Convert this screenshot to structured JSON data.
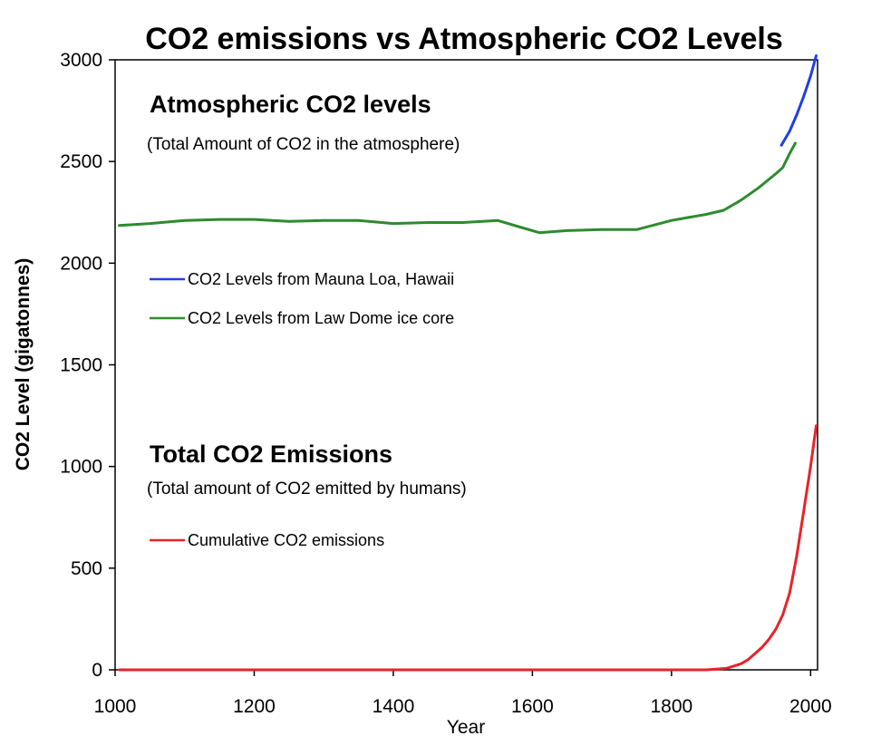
{
  "chart_data": {
    "type": "line",
    "title": "CO2 emissions vs Atmospheric CO2 Levels",
    "xlabel": "Year",
    "ylabel": "CO2 Level (gigatonnes)",
    "xlim": [
      1000,
      2010
    ],
    "ylim": [
      0,
      3000
    ],
    "xticks": [
      1000,
      1200,
      1400,
      1600,
      1800,
      2000
    ],
    "yticks": [
      0,
      500,
      1000,
      1500,
      2000,
      2500,
      3000
    ],
    "grid": false,
    "annotations": {
      "atmospheric_heading": "Atmospheric CO2 levels",
      "atmospheric_subheading": "(Total Amount of CO2 in the atmosphere)",
      "emissions_heading": "Total CO2 Emissions",
      "emissions_subheading": "(Total amount of CO2 emitted by humans)"
    },
    "colors": {
      "atmospheric_heading": "#1f3fe6",
      "emissions_heading": "#e8232a",
      "mauna_loa": "#1f3fe6",
      "law_dome": "#2e8b2e",
      "emissions": "#e8232a"
    },
    "series": [
      {
        "name": "CO2 Levels from Mauna Loa, Hawaii",
        "color": "#1f3fe6",
        "x": [
          1958,
          1970,
          1980,
          1990,
          2000,
          2008
        ],
        "y": [
          2580,
          2650,
          2730,
          2820,
          2920,
          3020
        ]
      },
      {
        "name": "CO2 Levels from Law Dome ice core",
        "color": "#2e8b2e",
        "x": [
          1006,
          1050,
          1100,
          1150,
          1200,
          1250,
          1300,
          1350,
          1400,
          1450,
          1500,
          1550,
          1580,
          1610,
          1650,
          1700,
          1750,
          1800,
          1850,
          1875,
          1900,
          1925,
          1950,
          1960,
          1970,
          1978
        ],
        "y": [
          2185,
          2195,
          2210,
          2215,
          2215,
          2205,
          2210,
          2210,
          2195,
          2200,
          2200,
          2210,
          2180,
          2150,
          2160,
          2165,
          2165,
          2210,
          2240,
          2260,
          2310,
          2370,
          2440,
          2470,
          2540,
          2590
        ]
      },
      {
        "name": "Cumulative CO2 emissions",
        "color": "#e8232a",
        "x": [
          1006,
          1750,
          1850,
          1870,
          1880,
          1900,
          1910,
          1920,
          1930,
          1940,
          1950,
          1960,
          1970,
          1980,
          1990,
          2000,
          2008
        ],
        "y": [
          0,
          0,
          0,
          5,
          8,
          30,
          50,
          80,
          110,
          150,
          200,
          270,
          380,
          560,
          780,
          1000,
          1200
        ]
      }
    ],
    "legend_group_1": [
      "CO2 Levels from Mauna Loa, Hawaii",
      "CO2 Levels from Law Dome ice core"
    ],
    "legend_group_2": [
      "Cumulative CO2 emissions"
    ],
    "legend_placement": "left, inside plot"
  }
}
